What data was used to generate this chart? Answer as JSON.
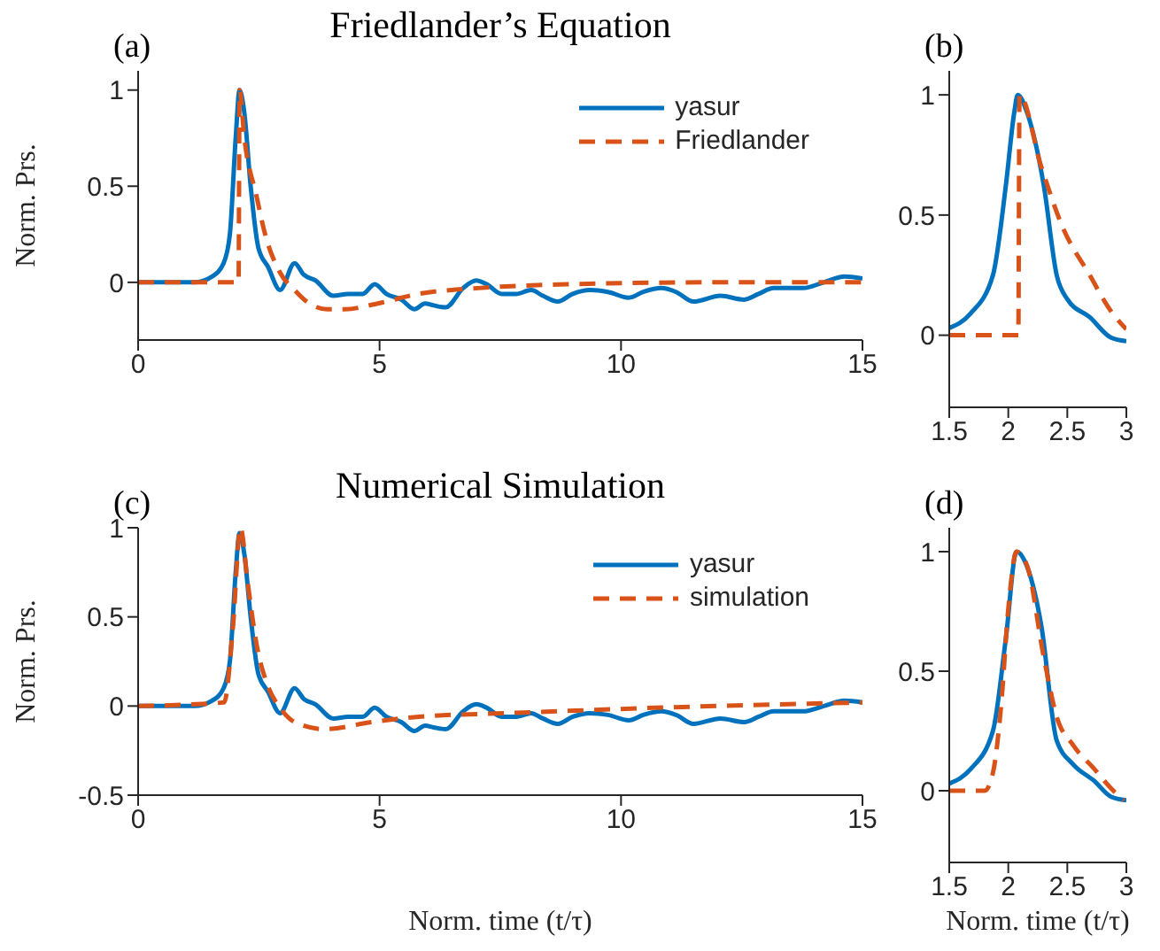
{
  "chart_data": [
    {
      "type": "line",
      "title": "Friedlander’s Equation",
      "ylabel": "Norm. Prs.",
      "annotations": [
        "(a)"
      ],
      "xlim": [
        0,
        15
      ],
      "ylim": [
        -0.3,
        1.1
      ],
      "xticks": [
        0,
        5,
        10,
        15
      ],
      "yticks": [
        0,
        0.5,
        1
      ],
      "legend": "top right",
      "series": [
        {
          "name": "yasur",
          "color": "#0072bd",
          "line_style": "solid",
          "x": [
            0,
            1.16,
            1.53,
            1.77,
            1.9,
            2.02,
            2.1,
            2.2,
            2.33,
            2.49,
            2.69,
            2.94,
            3.24,
            3.43,
            3.67,
            4.04,
            4.35,
            4.65,
            4.9,
            5.14,
            5.45,
            5.72,
            5.94,
            6.12,
            6.37,
            6.73,
            7.0,
            7.22,
            7.53,
            7.83,
            8.14,
            8.38,
            8.69,
            9.0,
            9.36,
            9.73,
            10.16,
            10.46,
            10.83,
            11.14,
            11.5,
            12.06,
            12.55,
            12.85,
            13.16,
            13.77,
            14.2,
            14.63,
            15
          ],
          "values": [
            0,
            0,
            0.03,
            0.1,
            0.25,
            0.75,
            1.0,
            0.88,
            0.5,
            0.18,
            0.08,
            -0.04,
            0.1,
            0.04,
            0.01,
            -0.07,
            -0.06,
            -0.06,
            -0.01,
            -0.06,
            -0.09,
            -0.14,
            -0.11,
            -0.12,
            -0.13,
            -0.03,
            0.01,
            -0.01,
            -0.06,
            -0.06,
            -0.04,
            -0.07,
            -0.1,
            -0.06,
            -0.04,
            -0.05,
            -0.08,
            -0.05,
            -0.03,
            -0.05,
            -0.1,
            -0.07,
            -0.09,
            -0.06,
            -0.03,
            -0.03,
            0,
            0.03,
            0.02
          ]
        },
        {
          "name": "Friedlander",
          "color": "#d95319",
          "line_style": "dashed",
          "x": [
            0,
            2.08,
            2.1,
            2.2,
            2.45,
            2.63,
            2.94,
            3.24,
            3.49,
            3.92,
            4.28,
            4.96,
            5.81,
            7.04,
            8.87,
            11.9,
            15
          ],
          "values": [
            0,
            0,
            1,
            0.75,
            0.45,
            0.25,
            0.05,
            -0.04,
            -0.1,
            -0.14,
            -0.14,
            -0.11,
            -0.06,
            -0.03,
            -0.01,
            0,
            0
          ]
        }
      ]
    },
    {
      "type": "line",
      "annotations": [
        "(b)"
      ],
      "xlim": [
        1.5,
        3
      ],
      "ylim": [
        -0.3,
        1.1
      ],
      "xticks": [
        1.5,
        2,
        2.5,
        3
      ],
      "yticks": [
        0,
        0.5,
        1
      ],
      "series": [
        {
          "color": "#0072bd",
          "line_style": "solid",
          "x": [
            1.5,
            1.68,
            1.87,
            1.98,
            2.05,
            2.08,
            2.16,
            2.3,
            2.41,
            2.5,
            2.69,
            2.87,
            3.0
          ],
          "values": [
            0.03,
            0.09,
            0.25,
            0.625,
            0.925,
            1,
            0.925,
            0.625,
            0.25,
            0.15,
            0.075,
            -0.01,
            -0.025
          ]
        },
        {
          "color": "#d95319",
          "line_style": "dashed",
          "x": [
            1.5,
            2.085,
            2.095,
            2.28,
            2.46,
            2.69,
            2.87,
            3.0
          ],
          "values": [
            0,
            0,
            1,
            0.7,
            0.45,
            0.25,
            0.1,
            0.025
          ]
        }
      ]
    },
    {
      "type": "line",
      "title": "Numerical Simulation",
      "xlabel": "Norm. time (t/τ)",
      "ylabel": "Norm. Prs.",
      "annotations": [
        "(c)"
      ],
      "xlim": [
        0,
        15
      ],
      "ylim": [
        -0.5,
        1
      ],
      "xticks": [
        0,
        5,
        10,
        15
      ],
      "yticks": [
        -0.5,
        0,
        0.5,
        1
      ],
      "legend": "top right",
      "series": [
        {
          "name": "yasur",
          "color": "#0072bd",
          "line_style": "solid",
          "x": [
            0,
            1.16,
            1.53,
            1.77,
            1.9,
            2.02,
            2.1,
            2.2,
            2.33,
            2.49,
            2.69,
            2.94,
            3.24,
            3.43,
            3.67,
            4.04,
            4.35,
            4.65,
            4.9,
            5.14,
            5.45,
            5.72,
            5.94,
            6.12,
            6.37,
            6.73,
            7.0,
            7.22,
            7.53,
            7.83,
            8.14,
            8.38,
            8.69,
            9.0,
            9.36,
            9.73,
            10.16,
            10.46,
            10.83,
            11.14,
            11.5,
            12.06,
            12.55,
            12.85,
            13.16,
            13.77,
            14.2,
            14.63,
            15
          ],
          "values": [
            0,
            0,
            0.03,
            0.1,
            0.25,
            0.75,
            0.97,
            0.85,
            0.5,
            0.18,
            0.08,
            -0.04,
            0.1,
            0.04,
            0.01,
            -0.07,
            -0.06,
            -0.06,
            -0.01,
            -0.06,
            -0.09,
            -0.14,
            -0.11,
            -0.12,
            -0.13,
            -0.03,
            0.01,
            -0.01,
            -0.06,
            -0.06,
            -0.04,
            -0.07,
            -0.1,
            -0.06,
            -0.04,
            -0.05,
            -0.08,
            -0.05,
            -0.03,
            -0.05,
            -0.1,
            -0.07,
            -0.09,
            -0.06,
            -0.03,
            -0.03,
            0,
            0.03,
            0.02
          ]
        },
        {
          "name": "simulation",
          "color": "#d95319",
          "line_style": "dashed",
          "x": [
            0,
            1.78,
            1.96,
            2.12,
            2.27,
            2.45,
            2.69,
            2.94,
            3.24,
            3.86,
            4.84,
            5.81,
            7.65,
            10.7,
            15
          ],
          "values": [
            0,
            0.02,
            0.43,
            1,
            0.69,
            0.35,
            0.11,
            -0.01,
            -0.09,
            -0.13,
            -0.09,
            -0.06,
            -0.04,
            -0.01,
            0.02
          ]
        }
      ]
    },
    {
      "type": "line",
      "xlabel": "Norm. time (t/τ)",
      "annotations": [
        "(d)"
      ],
      "xlim": [
        1.5,
        3
      ],
      "ylim": [
        -0.3,
        1.1
      ],
      "xticks": [
        1.5,
        2,
        2.5,
        3
      ],
      "yticks": [
        0,
        0.5,
        1
      ],
      "series": [
        {
          "color": "#0072bd",
          "line_style": "solid",
          "x": [
            1.5,
            1.68,
            1.87,
            1.98,
            2.07,
            2.14,
            2.28,
            2.41,
            2.55,
            2.73,
            2.87,
            3.0
          ],
          "values": [
            0.03,
            0.09,
            0.25,
            0.64,
            1,
            0.96,
            0.69,
            0.21,
            0.11,
            0.04,
            -0.025,
            -0.04
          ]
        },
        {
          "color": "#d95319",
          "line_style": "dashed",
          "x": [
            1.5,
            1.8,
            1.87,
            1.94,
            2.0,
            2.07,
            2.16,
            2.3,
            2.41,
            2.55,
            2.73,
            2.87,
            2.98
          ],
          "values": [
            0,
            0,
            0.075,
            0.36,
            0.76,
            1,
            0.94,
            0.56,
            0.31,
            0.19,
            0.09,
            0.01,
            -0.04
          ]
        }
      ]
    }
  ]
}
